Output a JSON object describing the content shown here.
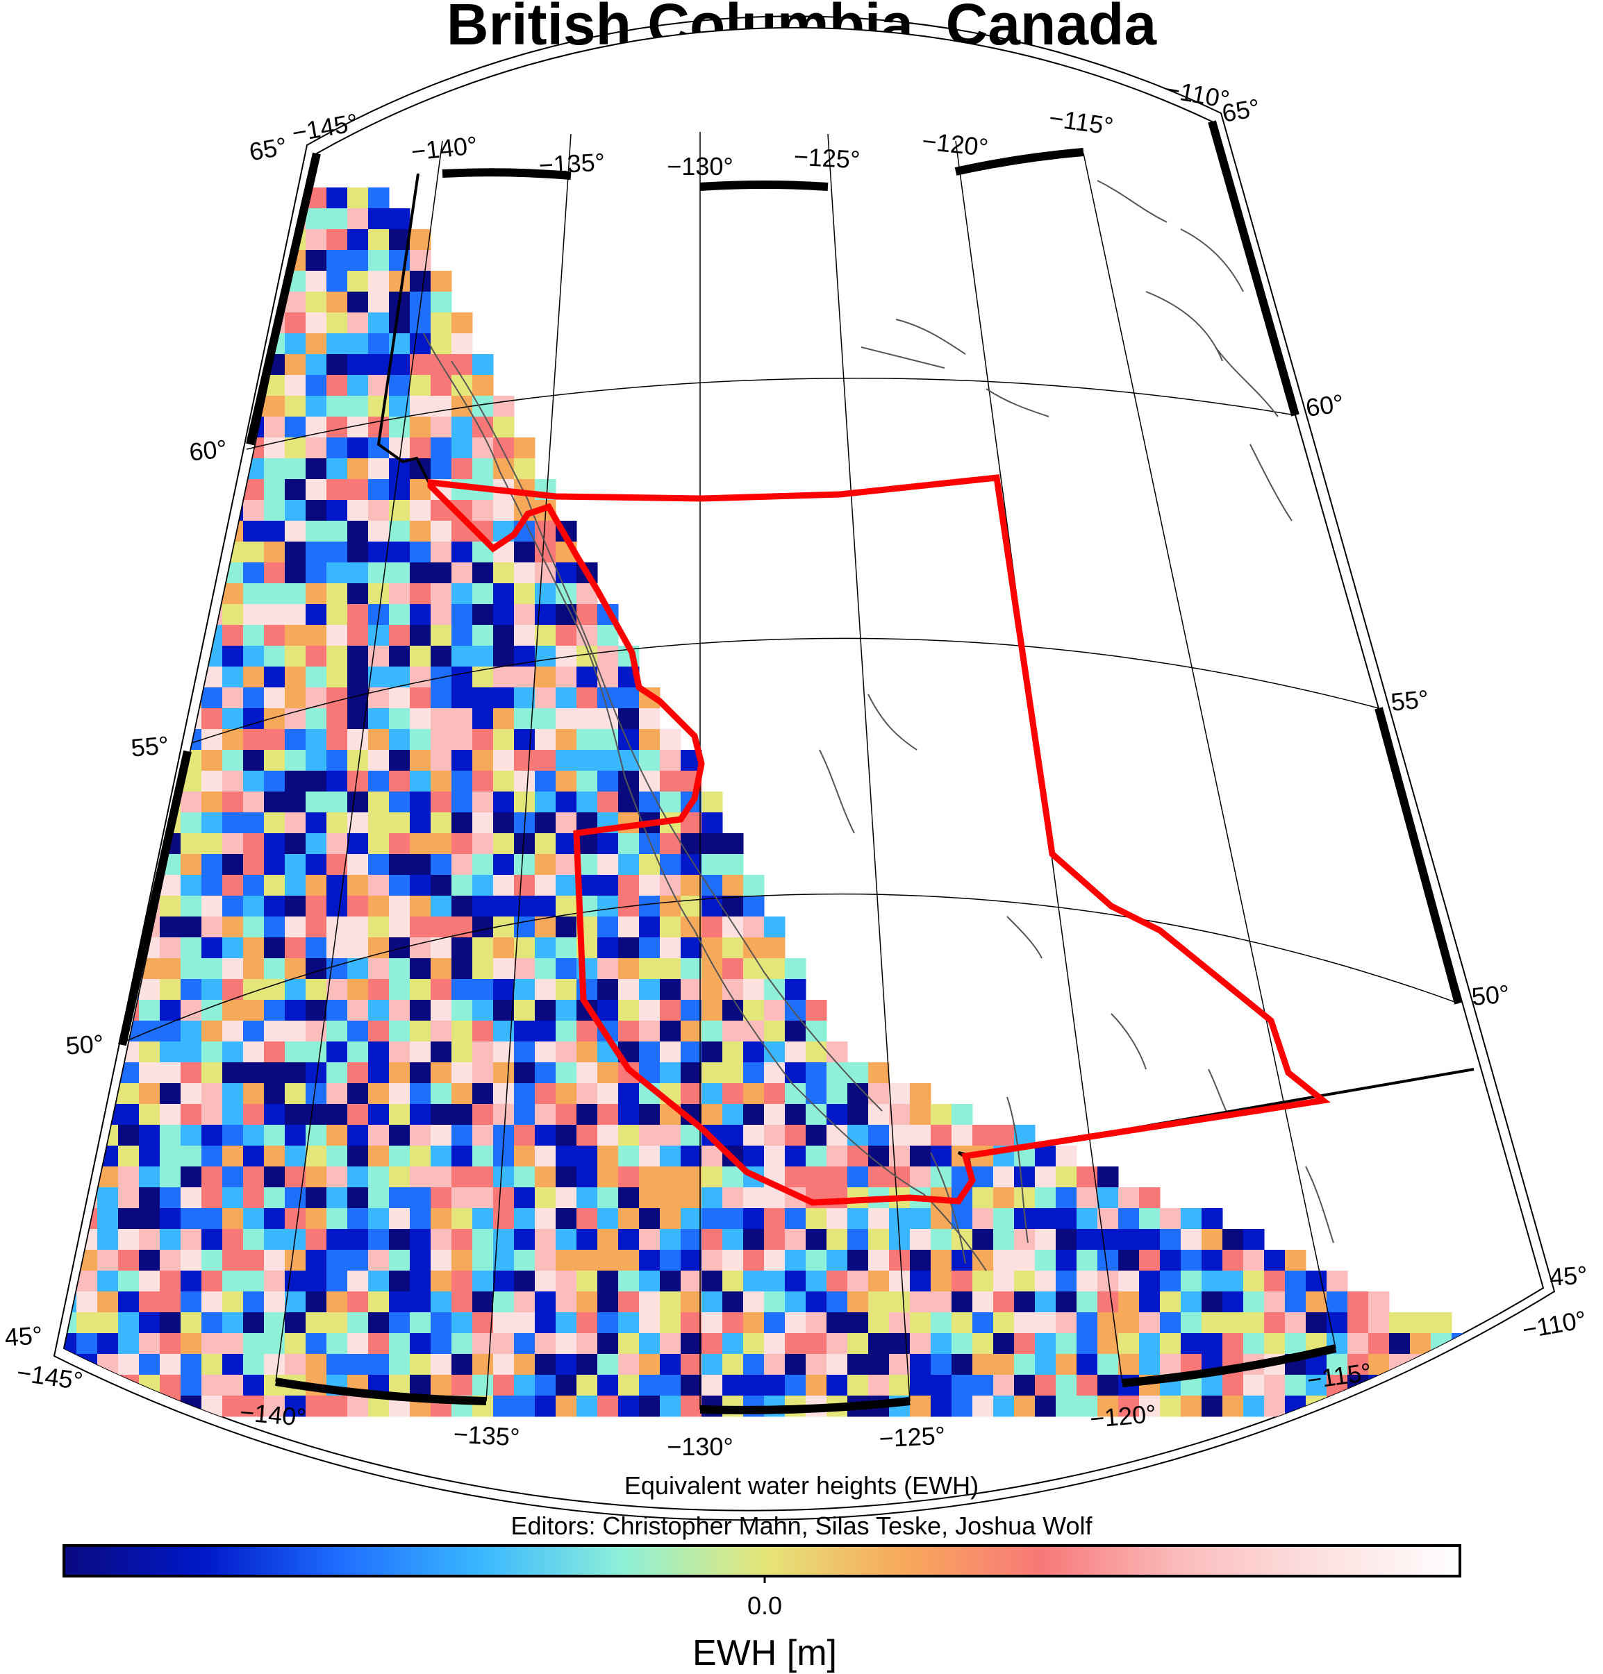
{
  "map": {
    "title": "British Columbia, Canada",
    "caption_line1": "Equivalent water heights (EWH)",
    "caption_line2": "Editors: Christopher Mahn, Silas Teske, Joshua Wolf",
    "region": "British Columbia, Canada",
    "projection": "conic",
    "longitude_range": [
      -145,
      -110
    ],
    "latitude_range": [
      45,
      65
    ],
    "longitude_ticks": [
      "−145°",
      "−140°",
      "−135°",
      "−130°",
      "−125°",
      "−120°",
      "−115°",
      "−110°"
    ],
    "latitude_ticks": [
      "45°",
      "50°",
      "55°",
      "60°",
      "65°"
    ],
    "province_outline_color": "#ff0000",
    "national_border_color": "#000000",
    "coastline_color": "#555555"
  },
  "colorbar": {
    "label": "EWH [m]",
    "zero_label": "0.0",
    "colors": [
      "#0a0a80",
      "#0018c8",
      "#1f6fff",
      "#3ab8ff",
      "#8ef0d8",
      "#e4e67a",
      "#f7a95a",
      "#f87878",
      "#fbbcbc",
      "#fde0e0",
      "#ffffff"
    ]
  },
  "icons": {
    "map": "conic-map-icon"
  }
}
